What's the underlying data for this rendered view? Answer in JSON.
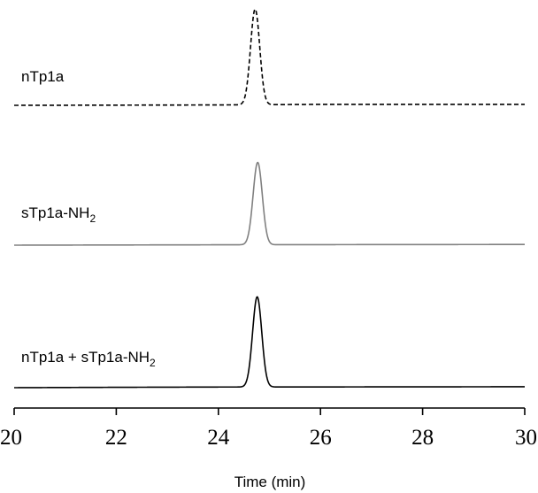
{
  "chart_data": {
    "type": "line",
    "title": "",
    "xlabel": "Time (min)",
    "ylabel": "",
    "xlim": [
      20,
      30
    ],
    "xticks": [
      "20",
      "22",
      "24",
      "26",
      "28",
      "30"
    ],
    "grid": false,
    "series": [
      {
        "label_main": "nTp1a",
        "label_sub": "",
        "label_suffix": "",
        "color": "#000000",
        "dash": "dashed",
        "baseline": [
          [
            20.0,
            0.0
          ],
          [
            22.0,
            0.02
          ],
          [
            24.0,
            0.04
          ],
          [
            26.0,
            0.1
          ],
          [
            28.0,
            0.1
          ],
          [
            30.0,
            0.1
          ]
        ],
        "peak": {
          "center": 24.72,
          "height": 1.0,
          "width": 0.09
        }
      },
      {
        "label_main": "sTp1a-NH",
        "label_sub": "2",
        "label_suffix": "",
        "color": "#808080",
        "dash": "solid",
        "baseline": [
          [
            20.0,
            0.0
          ],
          [
            22.0,
            0.02
          ],
          [
            24.0,
            0.04
          ],
          [
            26.0,
            0.06
          ],
          [
            28.0,
            0.07
          ],
          [
            30.0,
            0.08
          ]
        ],
        "peak": {
          "center": 24.77,
          "height": 0.93,
          "width": 0.09
        }
      },
      {
        "label_main": "nTp1a + sTp1a-NH",
        "label_sub": "2",
        "label_suffix": "",
        "color": "#000000",
        "dash": "solid",
        "baseline": [
          [
            20.0,
            0.0
          ],
          [
            22.0,
            0.04
          ],
          [
            24.0,
            0.07
          ],
          [
            26.0,
            0.08
          ],
          [
            28.0,
            0.09
          ],
          [
            30.0,
            0.1
          ]
        ],
        "peak": {
          "center": 24.76,
          "height": 0.97,
          "width": 0.09
        }
      }
    ]
  }
}
